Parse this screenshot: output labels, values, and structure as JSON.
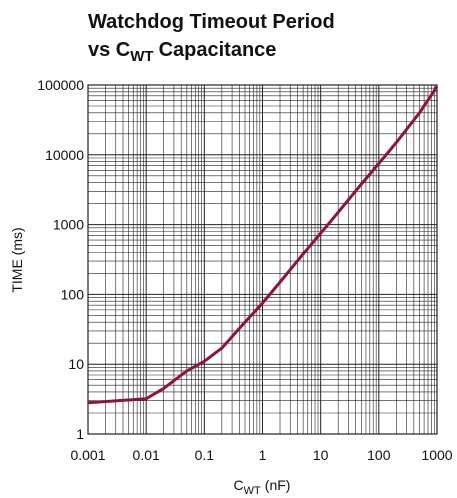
{
  "chart_data": {
    "type": "line",
    "title": [
      "Watchdog Timeout Period",
      "vs C",
      "WT",
      "Capacitance"
    ],
    "x_label": [
      "C",
      "WT",
      "(nF)"
    ],
    "y_label": "TIME (ms)",
    "x": [
      0.001,
      0.01,
      0.02,
      0.05,
      0.1,
      0.2,
      0.5,
      1,
      2,
      5,
      10,
      20,
      50,
      100,
      200,
      500,
      1000
    ],
    "series": [
      {
        "color": "#8c1538",
        "values": [
          2.8,
          3.2,
          4.5,
          8,
          11,
          17,
          40,
          75,
          150,
          380,
          750,
          1500,
          3800,
          7500,
          15000,
          40000,
          95000
        ]
      }
    ],
    "xlim": [
      0.001,
      1000
    ],
    "xticks": [
      0.001,
      0.01,
      0.1,
      1,
      10,
      100,
      1000
    ],
    "ylim": [
      1,
      100000
    ],
    "yticks": [
      1,
      10,
      100,
      1000,
      10000,
      100000
    ],
    "xscale": "log",
    "yscale": "log",
    "grid": true,
    "minor_grid": true
  }
}
